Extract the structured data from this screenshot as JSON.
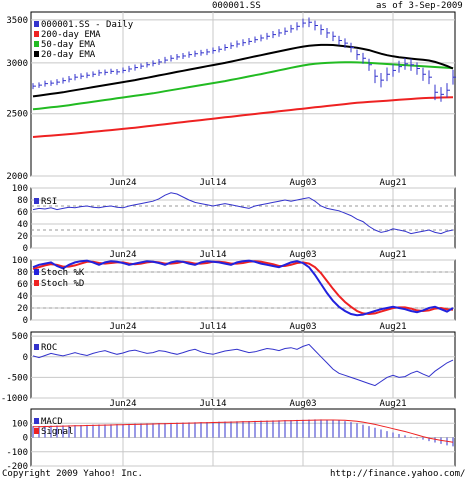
{
  "header": {
    "symbol": "000001.SS",
    "as_of": "as of  3-Sep-2009"
  },
  "footer": {
    "copyright": "Copyright 2009 Yahoo! Inc.",
    "url": "http://finance.yahoo.com/"
  },
  "colors": {
    "background": "#ffffff",
    "grid": "#c8c8c8",
    "price_bars": "#3333cc",
    "ema200": "#ee2222",
    "ema50": "#22bb22",
    "ema20": "#000000",
    "rsi": "#3333cc",
    "stoch_k": "#2222dd",
    "stoch_d": "#ee2222",
    "roc": "#3333cc",
    "macd": "#3333cc",
    "signal": "#ee2222",
    "histogram": "#3333cc"
  },
  "chart_data": [
    {
      "type": "line",
      "panel": "price",
      "legend": [
        "000001.SS - Daily",
        "200-day EMA",
        "50-day EMA",
        "20-day EMA"
      ],
      "x_ticks": [
        "Jun24",
        "Jul14",
        "Aug03",
        "Aug21"
      ],
      "x_tick_index": [
        15,
        30,
        45,
        60
      ],
      "y_ticks": [
        2000,
        2500,
        3000,
        3500
      ],
      "y_scale": "log",
      "ylim": [
        2000,
        3600
      ],
      "days": 71,
      "series": [
        {
          "name": "000001.SS - Daily",
          "kind": "ohlc",
          "close": [
            2760,
            2770,
            2785,
            2790,
            2800,
            2815,
            2830,
            2850,
            2860,
            2870,
            2880,
            2895,
            2900,
            2910,
            2905,
            2920,
            2935,
            2950,
            2965,
            2980,
            2995,
            3010,
            3030,
            3050,
            3065,
            3075,
            3090,
            3100,
            3110,
            3120,
            3135,
            3150,
            3170,
            3190,
            3210,
            3225,
            3240,
            3260,
            3280,
            3300,
            3320,
            3340,
            3360,
            3390,
            3420,
            3460,
            3470,
            3430,
            3380,
            3340,
            3300,
            3250,
            3220,
            3170,
            3090,
            3050,
            2980,
            2860,
            2820,
            2880,
            2920,
            2960,
            2990,
            2980,
            2940,
            2880,
            2850,
            2700,
            2680,
            2720,
            2850
          ],
          "range": [
            60,
            55,
            60,
            55,
            60,
            60,
            65,
            65,
            60,
            60,
            60,
            65,
            60,
            55,
            60,
            60,
            65,
            65,
            60,
            60,
            65,
            65,
            70,
            70,
            65,
            65,
            70,
            70,
            65,
            70,
            70,
            70,
            75,
            75,
            80,
            80,
            80,
            75,
            80,
            80,
            85,
            90,
            90,
            95,
            100,
            110,
            120,
            120,
            125,
            120,
            115,
            110,
            110,
            110,
            115,
            120,
            130,
            140,
            145,
            140,
            130,
            125,
            125,
            130,
            130,
            135,
            140,
            150,
            140,
            140,
            150
          ]
        },
        {
          "name": "200-day EMA",
          "values": [
            2300,
            2304,
            2308,
            2312,
            2316,
            2320,
            2324,
            2328,
            2333,
            2338,
            2343,
            2348,
            2353,
            2358,
            2363,
            2368,
            2373,
            2378,
            2384,
            2390,
            2396,
            2402,
            2408,
            2414,
            2420,
            2426,
            2432,
            2438,
            2444,
            2450,
            2456,
            2462,
            2468,
            2474,
            2480,
            2486,
            2492,
            2498,
            2504,
            2510,
            2516,
            2522,
            2528,
            2534,
            2540,
            2546,
            2552,
            2558,
            2564,
            2570,
            2576,
            2582,
            2588,
            2594,
            2600,
            2604,
            2608,
            2612,
            2616,
            2620,
            2624,
            2628,
            2632,
            2636,
            2640,
            2644,
            2646,
            2648,
            2650,
            2651,
            2652
          ]
        },
        {
          "name": "50-day EMA",
          "values": [
            2540,
            2546,
            2552,
            2558,
            2564,
            2570,
            2578,
            2586,
            2594,
            2602,
            2610,
            2618,
            2626,
            2634,
            2642,
            2650,
            2658,
            2666,
            2674,
            2682,
            2690,
            2700,
            2710,
            2720,
            2730,
            2740,
            2750,
            2760,
            2770,
            2780,
            2790,
            2800,
            2810,
            2822,
            2834,
            2846,
            2858,
            2870,
            2882,
            2895,
            2908,
            2921,
            2934,
            2947,
            2960,
            2972,
            2982,
            2990,
            2996,
            3000,
            3003,
            3005,
            3006,
            3006,
            3005,
            3003,
            3000,
            2996,
            2992,
            2988,
            2984,
            2980,
            2976,
            2972,
            2968,
            2964,
            2960,
            2956,
            2952,
            2948,
            2944
          ]
        },
        {
          "name": "20-day EMA",
          "values": [
            2660,
            2668,
            2676,
            2684,
            2692,
            2700,
            2710,
            2720,
            2730,
            2740,
            2750,
            2760,
            2770,
            2780,
            2790,
            2800,
            2810,
            2820,
            2832,
            2844,
            2856,
            2868,
            2880,
            2892,
            2904,
            2916,
            2928,
            2940,
            2952,
            2964,
            2976,
            2988,
            3000,
            3014,
            3028,
            3042,
            3056,
            3070,
            3084,
            3098,
            3112,
            3126,
            3140,
            3154,
            3168,
            3180,
            3190,
            3196,
            3200,
            3200,
            3198,
            3192,
            3184,
            3176,
            3166,
            3154,
            3140,
            3120,
            3100,
            3084,
            3072,
            3062,
            3054,
            3046,
            3040,
            3034,
            3026,
            3010,
            2990,
            2968,
            2940
          ]
        }
      ]
    },
    {
      "type": "line",
      "panel": "rsi",
      "y_ticks": [
        0,
        20,
        40,
        60,
        80,
        100
      ],
      "ylim": [
        0,
        100
      ],
      "reference_lines": [
        30,
        70
      ],
      "series": [
        {
          "name": "RSI",
          "values": [
            64,
            66,
            65,
            67,
            64,
            66,
            68,
            67,
            69,
            70,
            68,
            67,
            69,
            70,
            68,
            67,
            70,
            72,
            74,
            76,
            78,
            82,
            88,
            92,
            90,
            85,
            80,
            76,
            74,
            72,
            70,
            72,
            74,
            72,
            70,
            68,
            66,
            70,
            72,
            74,
            76,
            78,
            80,
            78,
            80,
            82,
            84,
            78,
            70,
            66,
            64,
            62,
            58,
            54,
            48,
            44,
            36,
            30,
            26,
            28,
            32,
            30,
            28,
            24,
            26,
            28,
            30,
            26,
            24,
            28,
            30
          ]
        }
      ]
    },
    {
      "type": "line",
      "panel": "stochastic",
      "y_ticks": [
        0,
        20,
        40,
        60,
        80,
        100
      ],
      "ylim": [
        0,
        100
      ],
      "reference_lines": [
        20,
        80
      ],
      "series": [
        {
          "name": "Stoch %K",
          "values": [
            88,
            92,
            94,
            96,
            90,
            86,
            92,
            96,
            98,
            99,
            96,
            92,
            96,
            98,
            97,
            95,
            92,
            94,
            96,
            98,
            97,
            95,
            92,
            96,
            98,
            97,
            94,
            92,
            96,
            98,
            97,
            96,
            94,
            92,
            96,
            98,
            99,
            97,
            94,
            92,
            90,
            88,
            92,
            96,
            98,
            95,
            88,
            75,
            60,
            45,
            32,
            22,
            15,
            10,
            8,
            9,
            12,
            15,
            18,
            20,
            22,
            20,
            18,
            15,
            13,
            16,
            20,
            22,
            18,
            14,
            20
          ]
        },
        {
          "name": "Stoch %D",
          "values": [
            85,
            88,
            91,
            93,
            92,
            89,
            89,
            91,
            94,
            97,
            97,
            95,
            94,
            95,
            96,
            96,
            94,
            93,
            94,
            96,
            97,
            96,
            94,
            94,
            95,
            97,
            96,
            94,
            94,
            95,
            97,
            97,
            96,
            94,
            94,
            95,
            97,
            98,
            97,
            95,
            93,
            90,
            90,
            92,
            95,
            96,
            94,
            88,
            78,
            65,
            52,
            40,
            30,
            22,
            15,
            11,
            10,
            11,
            14,
            17,
            20,
            21,
            21,
            19,
            16,
            15,
            16,
            19,
            20,
            18,
            17
          ]
        }
      ]
    },
    {
      "type": "line",
      "panel": "roc",
      "y_ticks": [
        -1000,
        -500,
        0,
        500
      ],
      "ylim": [
        -1000,
        600
      ],
      "series": [
        {
          "name": "ROC",
          "values": [
            20,
            -20,
            30,
            80,
            50,
            20,
            60,
            100,
            60,
            30,
            80,
            120,
            150,
            100,
            60,
            90,
            140,
            160,
            120,
            80,
            100,
            150,
            130,
            90,
            60,
            100,
            150,
            180,
            120,
            80,
            60,
            100,
            140,
            160,
            180,
            140,
            100,
            120,
            160,
            200,
            180,
            150,
            200,
            220,
            180,
            250,
            300,
            150,
            0,
            -150,
            -300,
            -400,
            -450,
            -500,
            -550,
            -600,
            -650,
            -700,
            -600,
            -500,
            -450,
            -500,
            -480,
            -400,
            -350,
            -420,
            -480,
            -350,
            -250,
            -150,
            -80
          ]
        }
      ]
    },
    {
      "type": "bar",
      "panel": "macd",
      "y_ticks": [
        -200,
        -100,
        0,
        100
      ],
      "ylim": [
        -200,
        200
      ],
      "series": [
        {
          "name": "MACD",
          "values": [
            80,
            81,
            82,
            83,
            84,
            85,
            86,
            87,
            88,
            89,
            90,
            91,
            92,
            93,
            94,
            95,
            96,
            97,
            98,
            99,
            100,
            101,
            102,
            103,
            104,
            105,
            106,
            107,
            108,
            109,
            110,
            111,
            112,
            113,
            114,
            115,
            116,
            117,
            118,
            119,
            120,
            121,
            122,
            123,
            124,
            125,
            126,
            127,
            127,
            126,
            124,
            120,
            115,
            108,
            100,
            90,
            80,
            68,
            56,
            45,
            35,
            25,
            15,
            5,
            -5,
            -15,
            -25,
            -35,
            -45,
            -55,
            -62
          ]
        },
        {
          "name": "Signal",
          "values": [
            75,
            76,
            77,
            78,
            79,
            80,
            81,
            82,
            83,
            84,
            85,
            86,
            87,
            88,
            89,
            90,
            91,
            92,
            93,
            94,
            95,
            96,
            97,
            98,
            99,
            100,
            101,
            102,
            103,
            104,
            105,
            106,
            107,
            108,
            109,
            110,
            111,
            112,
            113,
            114,
            115,
            116,
            117,
            118,
            119,
            120,
            121,
            122,
            123,
            123,
            123,
            122,
            121,
            118,
            114,
            108,
            100,
            92,
            82,
            72,
            62,
            52,
            42,
            30,
            18,
            6,
            -4,
            -12,
            -20,
            -27,
            -33
          ]
        }
      ]
    }
  ]
}
